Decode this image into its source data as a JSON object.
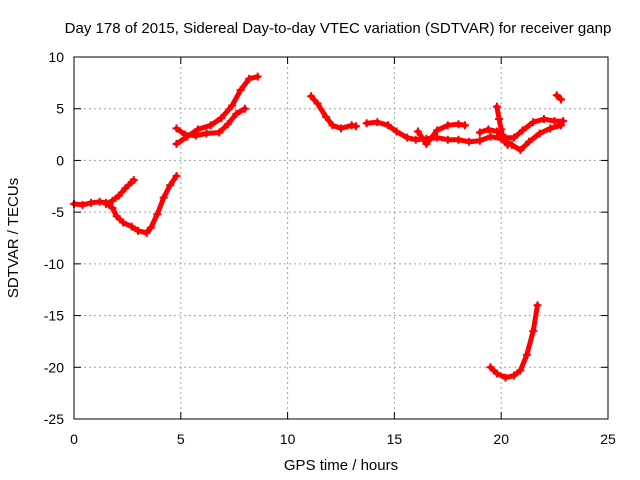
{
  "chart_data": {
    "type": "scatter",
    "title": "Day 178 of 2015, Sidereal Day-to-day VTEC variation (SDTVAR) for receiver ganp",
    "xlabel": "GPS time / hours",
    "ylabel": "SDTVAR / TECUs",
    "xlim": [
      0,
      25
    ],
    "ylim": [
      -25,
      10
    ],
    "xticks": [
      "0",
      "5",
      "10",
      "15",
      "20",
      "25"
    ],
    "yticks": [
      "10",
      "5",
      "0",
      "-5",
      "-10",
      "-15",
      "-20",
      "-25"
    ],
    "grid": true,
    "series_color": "#ff0000",
    "series": [
      {
        "points": [
          [
            0,
            -4.2
          ],
          [
            0.4,
            -4.3
          ],
          [
            0.8,
            -4.1
          ],
          [
            1.2,
            -4.0
          ],
          [
            1.5,
            -4.1
          ],
          [
            1.8,
            -4.6
          ],
          [
            2.0,
            -5.4
          ],
          [
            2.3,
            -6.0
          ],
          [
            2.7,
            -6.4
          ],
          [
            3.0,
            -6.8
          ],
          [
            3.4,
            -7.0
          ],
          [
            3.6,
            -6.5
          ],
          [
            3.9,
            -5.2
          ],
          [
            4.2,
            -3.6
          ],
          [
            4.5,
            -2.4
          ],
          [
            4.8,
            -1.5
          ]
        ]
      },
      {
        "points": [
          [
            1.5,
            -4.2
          ],
          [
            1.8,
            -3.9
          ],
          [
            2.1,
            -3.4
          ],
          [
            2.4,
            -2.7
          ],
          [
            2.7,
            -2.1
          ],
          [
            2.8,
            -1.9
          ]
        ]
      },
      {
        "points": [
          [
            4.8,
            3.1
          ],
          [
            5.2,
            2.5
          ],
          [
            5.7,
            2.4
          ],
          [
            6.2,
            2.6
          ],
          [
            6.8,
            2.7
          ],
          [
            7.2,
            3.5
          ],
          [
            7.6,
            4.5
          ],
          [
            8.0,
            5.0
          ]
        ]
      },
      {
        "points": [
          [
            4.8,
            1.6
          ],
          [
            5.3,
            2.3
          ],
          [
            5.8,
            3.0
          ],
          [
            6.4,
            3.4
          ],
          [
            6.9,
            4.1
          ],
          [
            7.4,
            5.3
          ],
          [
            7.8,
            6.8
          ],
          [
            8.2,
            7.9
          ],
          [
            8.6,
            8.1
          ]
        ]
      },
      {
        "points": [
          [
            11.1,
            6.2
          ],
          [
            11.4,
            5.5
          ],
          [
            11.8,
            4.2
          ],
          [
            12.1,
            3.4
          ],
          [
            12.5,
            3.1
          ],
          [
            13.0,
            3.4
          ],
          [
            13.2,
            3.3
          ]
        ]
      },
      {
        "points": [
          [
            13.7,
            3.6
          ],
          [
            14.2,
            3.7
          ],
          [
            14.7,
            3.4
          ],
          [
            15.1,
            2.8
          ],
          [
            15.6,
            2.2
          ],
          [
            16.0,
            2.0
          ],
          [
            16.5,
            2.1
          ],
          [
            17.0,
            2.2
          ],
          [
            17.5,
            2.0
          ],
          [
            18.0,
            2.0
          ],
          [
            18.5,
            1.8
          ],
          [
            19.0,
            1.9
          ],
          [
            19.5,
            2.3
          ],
          [
            20.0,
            2.1
          ],
          [
            20.5,
            1.5
          ],
          [
            20.9,
            1.0
          ],
          [
            21.3,
            1.8
          ],
          [
            21.8,
            2.6
          ],
          [
            22.3,
            3.1
          ],
          [
            22.8,
            3.4
          ]
        ]
      },
      {
        "points": [
          [
            16.1,
            2.8
          ],
          [
            16.5,
            1.6
          ],
          [
            17.0,
            2.9
          ],
          [
            17.5,
            3.4
          ],
          [
            18.0,
            3.5
          ],
          [
            18.3,
            3.4
          ]
        ]
      },
      {
        "points": [
          [
            19.0,
            2.7
          ],
          [
            19.4,
            3.0
          ],
          [
            19.8,
            2.8
          ],
          [
            20.2,
            2.2
          ],
          [
            20.6,
            2.2
          ],
          [
            21.0,
            2.9
          ],
          [
            21.5,
            3.7
          ],
          [
            22.0,
            4.0
          ],
          [
            22.5,
            3.8
          ],
          [
            22.9,
            3.8
          ]
        ]
      },
      {
        "points": [
          [
            19.8,
            5.2
          ],
          [
            19.9,
            4.0
          ],
          [
            20.0,
            3.0
          ],
          [
            20.1,
            2.0
          ],
          [
            20.3,
            1.5
          ]
        ]
      },
      {
        "points": [
          [
            22.6,
            6.3
          ],
          [
            22.8,
            5.9
          ]
        ]
      },
      {
        "points": [
          [
            19.5,
            -20.0
          ],
          [
            19.8,
            -20.6
          ],
          [
            20.2,
            -21.0
          ],
          [
            20.6,
            -20.8
          ],
          [
            20.9,
            -20.3
          ],
          [
            21.2,
            -18.8
          ],
          [
            21.5,
            -16.5
          ],
          [
            21.7,
            -14.0
          ]
        ]
      }
    ]
  }
}
